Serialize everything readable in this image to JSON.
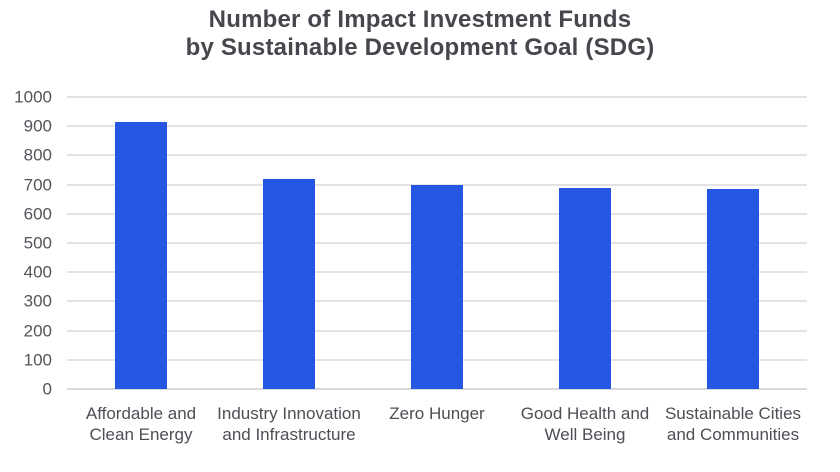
{
  "title": {
    "line1": "Number of Impact Investment Funds",
    "line2": "by Sustainable Development Goal (SDG)"
  },
  "chart_data": {
    "type": "bar",
    "title": "Number of Impact Investment Funds by Sustainable Development Goal (SDG)",
    "categories": [
      "Affordable and Clean Energy",
      "Industry Innovation and Infrastructure",
      "Zero Hunger",
      "Good Health and Well Being",
      "Sustainable Cities and Communities"
    ],
    "values": [
      915,
      720,
      700,
      688,
      685
    ],
    "xlabel": "",
    "ylabel": "",
    "ylim": [
      0,
      1000
    ],
    "yticks": [
      0,
      100,
      200,
      300,
      400,
      500,
      600,
      700,
      800,
      900,
      1000
    ],
    "grid": true,
    "legend": "none",
    "bar_color": "#2557e2",
    "gridline_color": "#e3e3e3",
    "axis_line_color": "#d9d9d9",
    "title_color": "#45474d",
    "tick_label_color": "#53555a",
    "category_label_color": "#4d4f55"
  }
}
